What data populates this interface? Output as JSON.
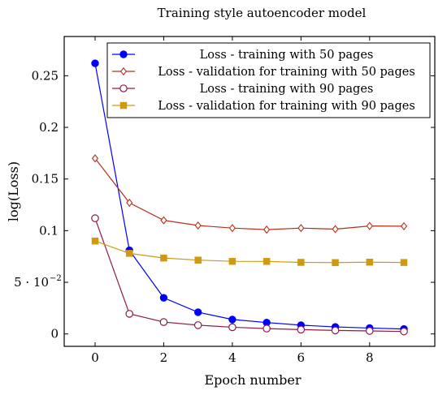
{
  "chart_data": {
    "type": "line",
    "title": "Training style autoencoder model",
    "xlabel": "Epoch number",
    "ylabel": "log(Loss)",
    "xlim": [
      -0.9,
      9.9
    ],
    "ylim": [
      -0.012,
      0.288
    ],
    "xticks": [
      0,
      2,
      4,
      6,
      8
    ],
    "yticks": [
      {
        "value": 0,
        "label": "0"
      },
      {
        "value": 0.05,
        "label": "5 · 10"
      },
      {
        "value": 0.1,
        "label": "0.1"
      },
      {
        "value": 0.15,
        "label": "0.15"
      },
      {
        "value": 0.2,
        "label": "0.2"
      },
      {
        "value": 0.25,
        "label": "0.25"
      }
    ],
    "y_sci_exponent": "−2",
    "grid": false,
    "legend_position": "top-right",
    "x": [
      0,
      1,
      2,
      3,
      4,
      5,
      6,
      7,
      8,
      9
    ],
    "series": [
      {
        "name": "Loss - training with 50 pages",
        "color": "#0000ff",
        "marker": "circle-filled",
        "values": [
          0.262,
          0.081,
          0.035,
          0.021,
          0.014,
          0.011,
          0.0085,
          0.0068,
          0.0057,
          0.0048
        ]
      },
      {
        "name": "Loss - validation for training with 50 pages",
        "color": "#b5301c",
        "marker": "diamond-open",
        "values": [
          0.17,
          0.127,
          0.11,
          0.105,
          0.1025,
          0.101,
          0.1025,
          0.1015,
          0.1045,
          0.1043
        ]
      },
      {
        "name": "Loss - training with 90 pages",
        "color": "#8e1a4a",
        "marker": "circle-open",
        "values": [
          0.112,
          0.0195,
          0.0115,
          0.0085,
          0.0065,
          0.0052,
          0.0042,
          0.0034,
          0.0029,
          0.0024
        ]
      },
      {
        "name": "Loss - validation for training with 90 pages",
        "color": "#cf9a10",
        "marker": "square-filled",
        "values": [
          0.09,
          0.078,
          0.0735,
          0.0715,
          0.0703,
          0.0702,
          0.0693,
          0.0691,
          0.0695,
          0.0692
        ]
      }
    ]
  }
}
